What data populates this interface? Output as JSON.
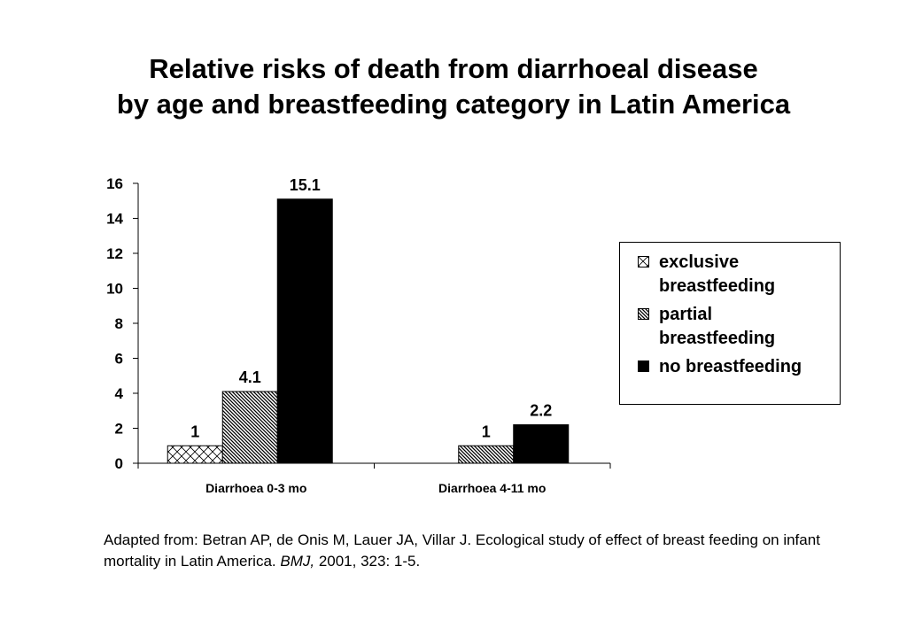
{
  "title": {
    "line1": "Relative risks of death from diarrhoeal disease",
    "line2": "by age and breastfeeding category in Latin America"
  },
  "chart_data": {
    "type": "bar",
    "categories": [
      "Diarrhoea 0-3 mo",
      "Diarrhoea 4-11 mo"
    ],
    "series": [
      {
        "name": "exclusive breastfeeding",
        "values": [
          1,
          null
        ],
        "labels": [
          "1",
          ""
        ],
        "pattern": "crosshatch"
      },
      {
        "name": "partial breastfeeding",
        "values": [
          4.1,
          1
        ],
        "labels": [
          "4.1",
          "1"
        ],
        "pattern": "diagonal"
      },
      {
        "name": "no breastfeeding",
        "values": [
          15.1,
          2.2
        ],
        "labels": [
          "15.1",
          "2.2"
        ],
        "pattern": "solid"
      }
    ],
    "ylim": [
      0,
      16
    ],
    "yticks": [
      0,
      2,
      4,
      6,
      8,
      10,
      12,
      14,
      16
    ],
    "xlabel": "",
    "ylabel": "",
    "legend_position": "right",
    "grid": false
  },
  "legend": {
    "items": [
      {
        "line1": "exclusive",
        "line2": "breastfeeding"
      },
      {
        "line1": "partial",
        "line2": "breastfeeding"
      },
      {
        "line1": "no breastfeeding",
        "line2": ""
      }
    ]
  },
  "source": {
    "text": "Adapted from: Betran AP, de Onis M, Lauer JA, Villar J. Ecological study of effect of breast feeding on infant mortality in Latin America. ",
    "journal": "BMJ,",
    "citation": " 2001, 323: 1-5."
  },
  "colors": {
    "bar_outline": "#000000",
    "solid_fill": "#000000",
    "pattern_bg": "#ffffff"
  }
}
